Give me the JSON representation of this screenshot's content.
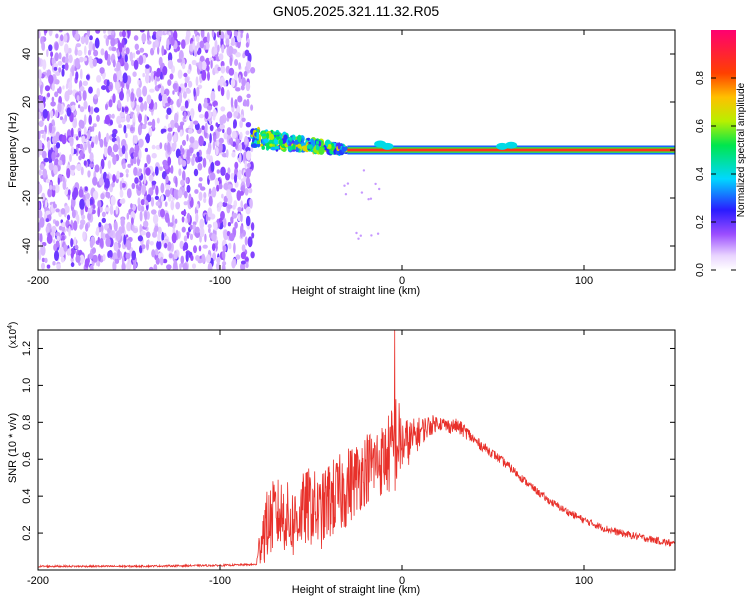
{
  "title": "GN05.2025.321.11.32.R05",
  "chart_data": [
    {
      "type": "heatmap",
      "title": "GN05.2025.321.11.32.R05",
      "xlabel": "Height of straight line (km)",
      "ylabel": "Frequency (Hz)",
      "xlim": [
        -200,
        150
      ],
      "ylim": [
        -50,
        50
      ],
      "x_ticks": [
        -200,
        -100,
        0,
        100
      ],
      "y_ticks": [
        -40,
        -20,
        0,
        20,
        40
      ],
      "x_tick_labels": [
        "-200",
        "-100",
        "0",
        "100"
      ],
      "y_tick_labels": [
        "-40",
        "-20",
        "0",
        "20",
        "40"
      ],
      "colorbar": {
        "label": "Normalized spectral amplitude",
        "range": [
          0,
          1
        ],
        "ticks": [
          0.0,
          0.2,
          0.4,
          0.6,
          0.8
        ],
        "tick_labels": [
          "0.0",
          "0.2",
          "0.4",
          "0.6",
          "0.8"
        ]
      },
      "regions": [
        {
          "name": "noise",
          "x_range": [
            -200,
            -82
          ],
          "freq_range": [
            -50,
            50
          ],
          "amplitude": [
            0.05,
            0.2
          ]
        },
        {
          "name": "scattered-signal",
          "x_range": [
            -82,
            -30
          ],
          "freq_range": [
            -5,
            10
          ],
          "amplitude": [
            0.2,
            0.7
          ]
        },
        {
          "name": "stable-line",
          "x_range": [
            -30,
            150
          ],
          "freq": 0,
          "amplitude": [
            0.8,
            1.0
          ]
        }
      ]
    },
    {
      "type": "line",
      "xlabel": "Height of straight line (km)",
      "ylabel": "SNR (10 * v/v)",
      "y_multiplier": "(x10^4)",
      "y_multiplier_base": "(x10",
      "y_multiplier_exp": "4",
      "y_multiplier_close": ")",
      "xlim": [
        -200,
        150
      ],
      "ylim": [
        0,
        1.3
      ],
      "x_ticks": [
        -200,
        -100,
        0,
        100
      ],
      "y_ticks": [
        0.2,
        0.4,
        0.6,
        0.8,
        1.0,
        1.2
      ],
      "x_tick_labels": [
        "-200",
        "-100",
        "0",
        "100"
      ],
      "y_tick_labels": [
        "0.2",
        "0.4",
        "0.6",
        "0.8",
        "1.0",
        "1.2"
      ],
      "series": [
        {
          "name": "SNR",
          "color": "#e8302a",
          "x": [
            -200,
            -150,
            -100,
            -80,
            -77,
            -70,
            -65,
            -60,
            -55,
            -50,
            -45,
            -40,
            -35,
            -30,
            -25,
            -20,
            -15,
            -10,
            -5,
            -3,
            0,
            5,
            10,
            15,
            20,
            25,
            30,
            35,
            40,
            50,
            60,
            70,
            80,
            90,
            100,
            110,
            120,
            130,
            140,
            150
          ],
          "values": [
            0.02,
            0.02,
            0.025,
            0.03,
            0.2,
            0.3,
            0.3,
            0.25,
            0.32,
            0.35,
            0.3,
            0.38,
            0.4,
            0.45,
            0.5,
            0.55,
            0.58,
            0.6,
            0.65,
            0.7,
            0.68,
            0.7,
            0.75,
            0.78,
            0.8,
            0.78,
            0.78,
            0.75,
            0.7,
            0.63,
            0.55,
            0.46,
            0.38,
            0.32,
            0.27,
            0.23,
            0.2,
            0.18,
            0.16,
            0.14
          ],
          "noise_spread": [
            0.005,
            0.005,
            0.005,
            0.005,
            0.18,
            0.2,
            0.2,
            0.2,
            0.2,
            0.22,
            0.2,
            0.22,
            0.22,
            0.22,
            0.2,
            0.2,
            0.2,
            0.2,
            0.25,
            0.3,
            0.15,
            0.12,
            0.08,
            0.06,
            0.04,
            0.04,
            0.04,
            0.04,
            0.03,
            0.025,
            0.025,
            0.02,
            0.02,
            0.02,
            0.02,
            0.02,
            0.02,
            0.02,
            0.02,
            0.02
          ],
          "spike": {
            "x": -4,
            "value": 1.3
          }
        }
      ]
    }
  ]
}
